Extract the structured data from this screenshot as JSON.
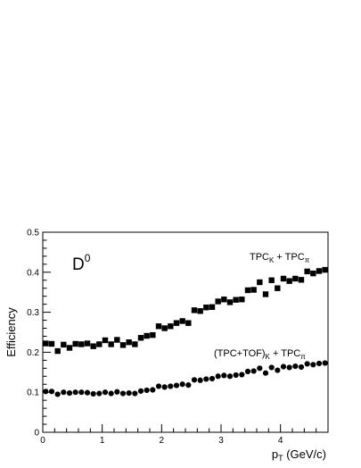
{
  "chart_data": {
    "type": "scatter",
    "title": "",
    "xlabel": "p",
    "xlabel_sub": "T",
    "xlabel_unit": " (GeV/c)",
    "ylabel": "Efficiency",
    "xlim": [
      0,
      4.8
    ],
    "ylim": [
      0,
      0.5
    ],
    "xticks": [
      0,
      1,
      2,
      3,
      4
    ],
    "yticks": [
      0,
      0.1,
      0.2,
      0.3,
      0.4,
      0.5
    ],
    "ytick_labels": [
      "0",
      "0.1",
      "0.2",
      "0.3",
      "0.4",
      "0.5"
    ],
    "grid": false,
    "particle_label": "D",
    "particle_label_sup": "0",
    "series": [
      {
        "label_parts": [
          "TPC",
          "K",
          " + TPC",
          "π"
        ],
        "marker": "square",
        "color": "#000000",
        "x": [
          0.05,
          0.15,
          0.25,
          0.35,
          0.45,
          0.55,
          0.65,
          0.75,
          0.85,
          0.95,
          1.05,
          1.15,
          1.25,
          1.35,
          1.45,
          1.55,
          1.65,
          1.75,
          1.85,
          1.95,
          2.05,
          2.15,
          2.25,
          2.35,
          2.45,
          2.55,
          2.65,
          2.75,
          2.85,
          2.95,
          3.05,
          3.15,
          3.25,
          3.35,
          3.45,
          3.55,
          3.65,
          3.75,
          3.85,
          3.95,
          4.05,
          4.15,
          4.25,
          4.35,
          4.45,
          4.55,
          4.65,
          4.75
        ],
        "y": [
          0.222,
          0.221,
          0.203,
          0.219,
          0.211,
          0.221,
          0.22,
          0.222,
          0.215,
          0.22,
          0.23,
          0.22,
          0.231,
          0.218,
          0.225,
          0.22,
          0.236,
          0.241,
          0.243,
          0.265,
          0.26,
          0.265,
          0.273,
          0.278,
          0.273,
          0.305,
          0.303,
          0.312,
          0.313,
          0.327,
          0.332,
          0.325,
          0.331,
          0.332,
          0.355,
          0.356,
          0.375,
          0.345,
          0.38,
          0.36,
          0.384,
          0.378,
          0.384,
          0.381,
          0.402,
          0.397,
          0.403,
          0.406
        ]
      },
      {
        "label_parts": [
          "(TPC+TOF)",
          "K",
          " + TPC",
          "π"
        ],
        "marker": "circle",
        "color": "#000000",
        "x": [
          0.05,
          0.15,
          0.25,
          0.35,
          0.45,
          0.55,
          0.65,
          0.75,
          0.85,
          0.95,
          1.05,
          1.15,
          1.25,
          1.35,
          1.45,
          1.55,
          1.65,
          1.75,
          1.85,
          1.95,
          2.05,
          2.15,
          2.25,
          2.35,
          2.45,
          2.55,
          2.65,
          2.75,
          2.85,
          2.95,
          3.05,
          3.15,
          3.25,
          3.35,
          3.45,
          3.55,
          3.65,
          3.75,
          3.85,
          3.95,
          4.05,
          4.15,
          4.25,
          4.35,
          4.45,
          4.55,
          4.65,
          4.75
        ],
        "y": [
          0.102,
          0.102,
          0.095,
          0.1,
          0.098,
          0.1,
          0.1,
          0.099,
          0.096,
          0.097,
          0.1,
          0.097,
          0.101,
          0.097,
          0.098,
          0.097,
          0.103,
          0.105,
          0.106,
          0.115,
          0.113,
          0.115,
          0.117,
          0.12,
          0.118,
          0.131,
          0.13,
          0.133,
          0.134,
          0.14,
          0.142,
          0.14,
          0.143,
          0.144,
          0.152,
          0.153,
          0.16,
          0.148,
          0.162,
          0.155,
          0.164,
          0.162,
          0.165,
          0.163,
          0.171,
          0.169,
          0.172,
          0.173
        ]
      }
    ]
  }
}
